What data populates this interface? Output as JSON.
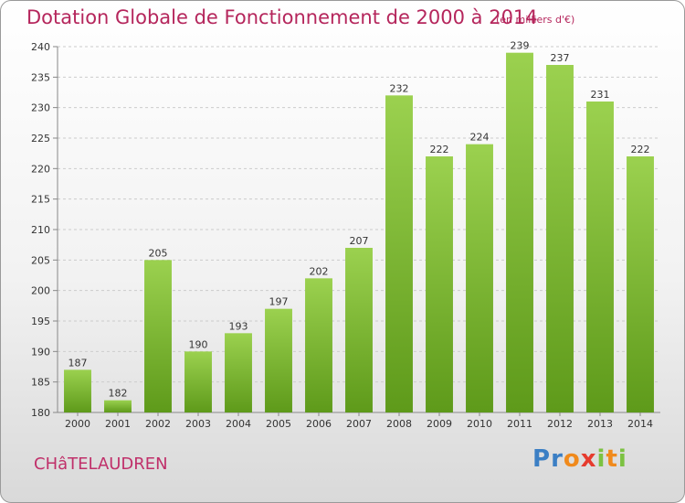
{
  "chart_data": {
    "type": "bar",
    "title": "Dotation Globale de Fonctionnement de 2000 à 2014",
    "subtitle": "(en milliers d'€)",
    "categories": [
      "2000",
      "2001",
      "2002",
      "2003",
      "2004",
      "2005",
      "2006",
      "2007",
      "2008",
      "2009",
      "2010",
      "2011",
      "2012",
      "2013",
      "2014"
    ],
    "values": [
      187,
      182,
      205,
      190,
      193,
      197,
      202,
      207,
      232,
      222,
      224,
      239,
      237,
      231,
      222
    ],
    "ylim": [
      180,
      240
    ],
    "yticks": [
      180,
      185,
      190,
      195,
      200,
      205,
      210,
      215,
      220,
      225,
      230,
      235,
      240
    ],
    "grid": true,
    "legend": "none",
    "colors": {
      "bar_top": "#9bd14f",
      "bar_bottom": "#5e9a1a",
      "title": "#b5265c"
    }
  },
  "footer": {
    "commune": "CHâTELAUDREN",
    "logo": {
      "letters": [
        "P",
        "r",
        "o",
        "x",
        "i",
        "t",
        "i"
      ],
      "colors": [
        "#3b7fc4",
        "#3b7fc4",
        "#f08a1c",
        "#e63b2e",
        "#7cc242",
        "#f08a1c",
        "#7cc242"
      ]
    }
  }
}
